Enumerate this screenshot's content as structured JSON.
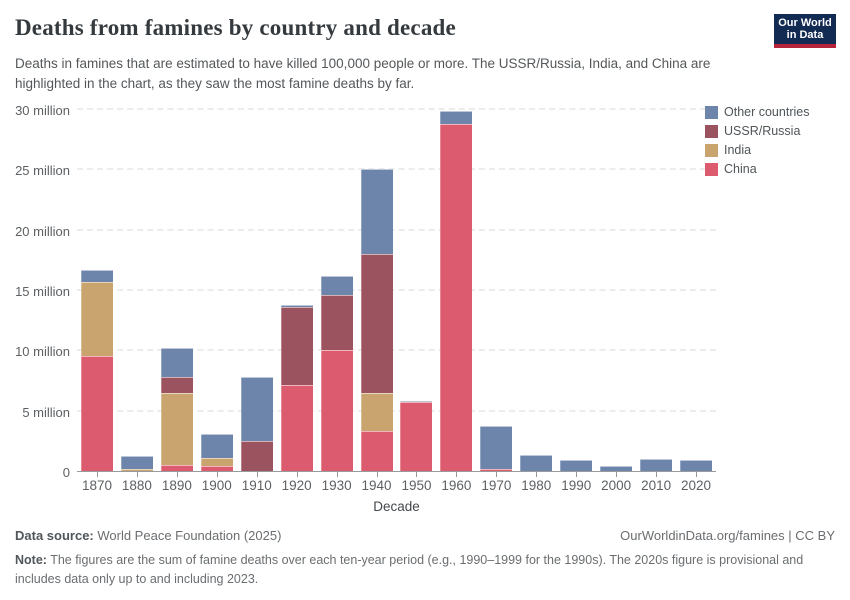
{
  "header": {
    "title": "Deaths from famines by country and decade",
    "subtitle": "Deaths in famines that are estimated to have killed 100,000 people or more. The USSR/Russia, India, and China are highlighted in the chart, as they saw the most famine deaths by far.",
    "logo": {
      "line1": "Our World",
      "line2": "in Data",
      "bg_color": "#122b52",
      "accent_color": "#b5233a"
    }
  },
  "chart_data": {
    "type": "bar",
    "stacked": true,
    "title": "Deaths from famines by country and decade",
    "xlabel": "Decade",
    "ylabel": "",
    "unit": "million deaths",
    "ylim": [
      0,
      30
    ],
    "grid": "horizontal-dashed",
    "legend_position": "top-right",
    "categories": [
      "1870",
      "1880",
      "1890",
      "1900",
      "1910",
      "1920",
      "1930",
      "1940",
      "1950",
      "1960",
      "1970",
      "1980",
      "1990",
      "2000",
      "2010",
      "2020"
    ],
    "y_ticks": [
      {
        "value": 0,
        "label": "0"
      },
      {
        "value": 5,
        "label": "5 million"
      },
      {
        "value": 10,
        "label": "10 million"
      },
      {
        "value": 15,
        "label": "15 million"
      },
      {
        "value": 20,
        "label": "20 million"
      },
      {
        "value": 25,
        "label": "25 million"
      },
      {
        "value": 30,
        "label": "30 million"
      }
    ],
    "series": [
      {
        "name": "China",
        "color": "#dd5b6e",
        "values": [
          9.5,
          0,
          0.5,
          0.4,
          0,
          7.1,
          10,
          3.3,
          5.7,
          28.8,
          0.2,
          0,
          0,
          0,
          0,
          0
        ]
      },
      {
        "name": "India",
        "color": "#c9a46e",
        "values": [
          6.2,
          0.15,
          6,
          0.65,
          0,
          0,
          0,
          3.2,
          0,
          0,
          0,
          0,
          0,
          0,
          0,
          0
        ]
      },
      {
        "name": "USSR/Russia",
        "color": "#9c5360",
        "values": [
          0,
          0,
          1.3,
          0,
          2.5,
          6.5,
          4.6,
          11.5,
          0,
          0,
          0,
          0,
          0,
          0,
          0,
          0
        ]
      },
      {
        "name": "Other countries",
        "color": "#6d84ab",
        "values": [
          1,
          1.1,
          2.4,
          2.05,
          5.3,
          0.15,
          1.55,
          7,
          0.1,
          1,
          3.5,
          1.3,
          0.95,
          0.45,
          1,
          0.9
        ]
      }
    ],
    "legend_order": [
      "Other countries",
      "USSR/Russia",
      "India",
      "China"
    ]
  },
  "footer": {
    "data_source_label": "Data source:",
    "data_source_value": " World Peace Foundation (2025)",
    "rights": "OurWorldinData.org/famines | CC BY",
    "note_label": "Note:",
    "note_value": " The figures are the sum of famine deaths over each ten-year period (e.g., 1990–1999 for the 1990s). The 2020s figure is provisional and includes data only up to and including 2023."
  }
}
